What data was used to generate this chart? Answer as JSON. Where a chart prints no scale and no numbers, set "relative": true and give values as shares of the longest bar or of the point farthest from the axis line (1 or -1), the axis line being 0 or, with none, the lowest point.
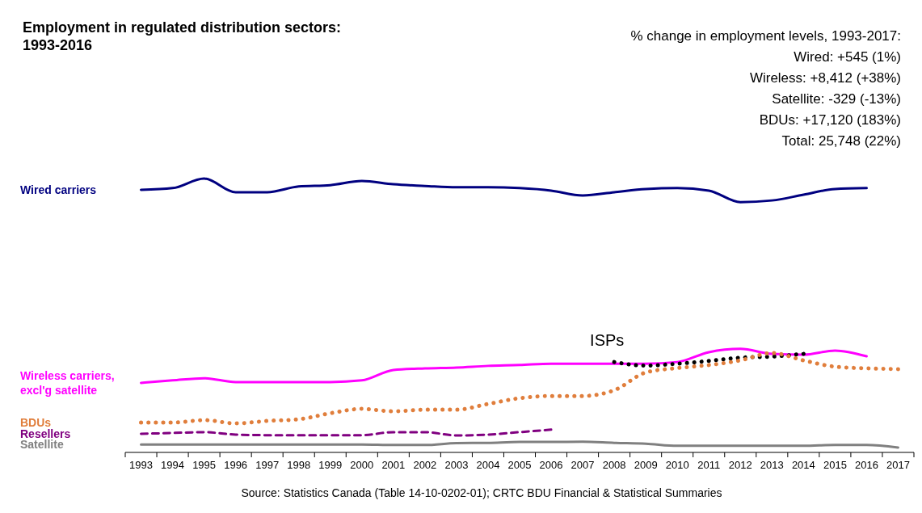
{
  "chart_data": {
    "type": "line",
    "title": "Employment in regulated distribution sectors: 1993-2016",
    "relative": true,
    "categories": [
      "1993",
      "1994",
      "1995",
      "1996",
      "1997",
      "1998",
      "1999",
      "2000",
      "2001",
      "2002",
      "2003",
      "2004",
      "2005",
      "2006",
      "2007",
      "2008",
      "2009",
      "2010",
      "2011",
      "2012",
      "2013",
      "2014",
      "2015",
      "2016",
      "2017"
    ],
    "series": [
      {
        "name": "Wired carriers",
        "color": "#000080",
        "line_style": "solid",
        "values": [
          0.959,
          0.965,
          1,
          0.95,
          0.95,
          0.971,
          0.976,
          0.991,
          0.979,
          0.973,
          0.968,
          0.968,
          0.965,
          0.956,
          0.938,
          0.95,
          0.962,
          0.965,
          0.956,
          0.914,
          0.92,
          0.941,
          0.962,
          0.965,
          null
        ]
      },
      {
        "name": "Wireless carriers, excl'g satellite",
        "color": "#ff00ff",
        "line_style": "solid",
        "values": [
          0.254,
          0.263,
          0.271,
          0.257,
          0.257,
          0.257,
          0.257,
          0.263,
          0.301,
          0.307,
          0.31,
          0.316,
          0.319,
          0.324,
          0.324,
          0.324,
          0.324,
          0.33,
          0.366,
          0.378,
          0.36,
          0.357,
          0.372,
          0.351,
          null
        ]
      },
      {
        "name": "ISPs",
        "color": "#000000",
        "line_style": "dotted",
        "values": [
          null,
          null,
          null,
          null,
          null,
          null,
          null,
          null,
          null,
          null,
          null,
          null,
          null,
          null,
          null,
          0.33,
          0.317,
          0.324,
          0.334,
          0.346,
          0.35,
          0.36,
          null,
          null,
          null
        ]
      },
      {
        "name": "BDUs",
        "color": "#e07e3c",
        "line_style": "dotted",
        "values": [
          0.109,
          0.109,
          0.118,
          0.106,
          0.115,
          0.121,
          0.143,
          0.159,
          0.15,
          0.156,
          0.156,
          0.177,
          0.198,
          0.206,
          0.206,
          0.227,
          0.292,
          0.308,
          0.319,
          0.336,
          0.363,
          0.336,
          0.313,
          0.307,
          0.304
        ]
      },
      {
        "name": "Resellers",
        "color": "#800080",
        "line_style": "dashed",
        "values": [
          0.068,
          0.071,
          0.074,
          0.065,
          0.063,
          0.063,
          0.063,
          0.063,
          0.074,
          0.074,
          0.062,
          0.065,
          0.074,
          0.083,
          null,
          null,
          null,
          null,
          null,
          null,
          null,
          null,
          null,
          null,
          null
        ]
      },
      {
        "name": "Satellite",
        "color": "#808080",
        "line_style": "solid",
        "values": [
          0.029,
          0.029,
          0.029,
          0.029,
          0.029,
          0.029,
          0.029,
          0.029,
          0.027,
          0.027,
          0.034,
          0.035,
          0.038,
          0.038,
          0.039,
          0.035,
          0.032,
          0.024,
          0.024,
          0.024,
          0.024,
          0.024,
          0.027,
          0.027,
          0.018
        ]
      }
    ],
    "annotations": [
      "% change in employment levels, 1993-2017:",
      "Wired:  +545 (1%)",
      "Wireless:  +8,412 (+38%)",
      "Satellite:  -329 (-13%)",
      "BDUs:  +17,120 (183%)",
      "Total:  25,748 (22%)",
      "Source:  Statistics Canada (Table 14-10-0202-01); CRTC BDU Financial & Statistical Summaries"
    ]
  }
}
